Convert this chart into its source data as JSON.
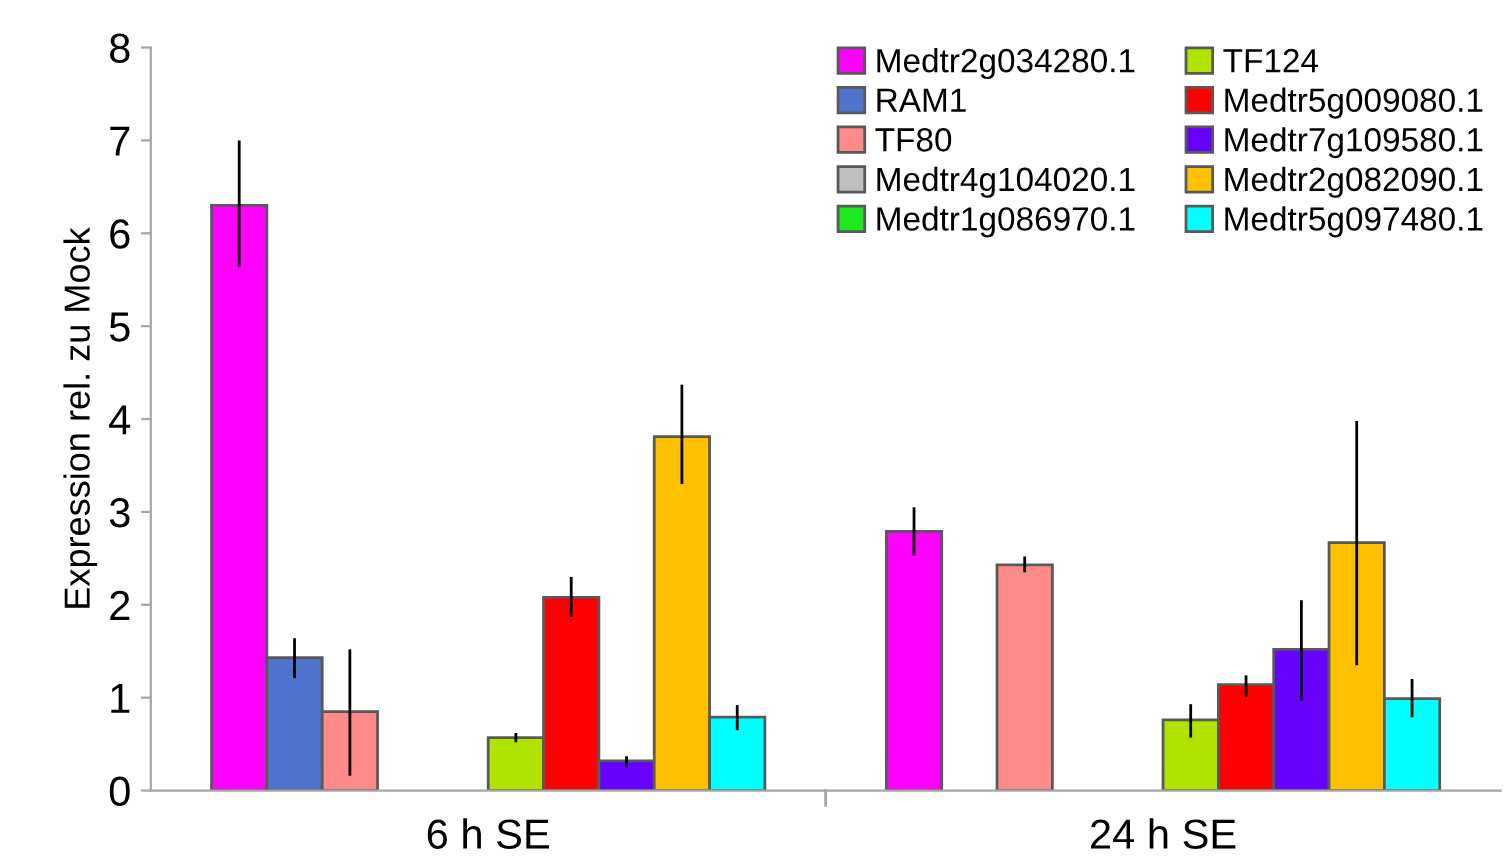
{
  "chart_data": {
    "type": "bar",
    "ylabel": "Expression rel. zu Mock",
    "categories": [
      "6 h SE",
      "24 h SE"
    ],
    "ylim": [
      0,
      8
    ],
    "yticks": [
      0,
      1,
      2,
      3,
      4,
      5,
      6,
      7,
      8
    ],
    "grid": false,
    "legend": "top right",
    "series": [
      {
        "name": "Medtr2g034280.1",
        "color": "#ff00ff",
        "values": [
          6.3,
          2.79
        ],
        "errors": [
          [
            5.64,
            7.0
          ],
          [
            2.53,
            3.05
          ]
        ]
      },
      {
        "name": "RAM1",
        "color": "#4f73cc",
        "values": [
          1.43,
          null
        ],
        "errors": [
          [
            1.21,
            1.64
          ],
          null
        ]
      },
      {
        "name": "TF80",
        "color": "#ff8a8a",
        "values": [
          0.85,
          2.43
        ],
        "errors": [
          [
            0.16,
            1.52
          ],
          [
            2.35,
            2.52
          ]
        ]
      },
      {
        "name": "Medtr4g104020.1",
        "color": "#bfbfbf",
        "values": [
          null,
          null
        ]
      },
      {
        "name": "Medtr1g086970.1",
        "color": "#1ee81e",
        "values": [
          null,
          null
        ]
      },
      {
        "name": "TF124",
        "color": "#b0e400",
        "values": [
          0.57,
          0.76
        ],
        "errors": [
          [
            0.52,
            0.62
          ],
          [
            0.57,
            0.93
          ]
        ]
      },
      {
        "name": "Medtr5g009080.1",
        "color": "#ff0000",
        "values": [
          2.08,
          1.14
        ],
        "errors": [
          [
            1.87,
            2.3
          ],
          [
            1.01,
            1.24
          ]
        ]
      },
      {
        "name": "Medtr7g109580.1",
        "color": "#6600ff",
        "values": [
          0.32,
          1.52
        ],
        "errors": [
          [
            0.25,
            0.37
          ],
          [
            0.97,
            2.05
          ]
        ]
      },
      {
        "name": "Medtr2g082090.1",
        "color": "#ffc000",
        "values": [
          3.81,
          2.67
        ],
        "errors": [
          [
            3.3,
            4.37
          ],
          [
            1.35,
            3.98
          ]
        ]
      },
      {
        "name": "Medtr5g097480.1",
        "color": "#00ffff",
        "values": [
          0.79,
          0.99
        ],
        "errors": [
          [
            0.65,
            0.92
          ],
          [
            0.79,
            1.2
          ]
        ]
      }
    ]
  }
}
